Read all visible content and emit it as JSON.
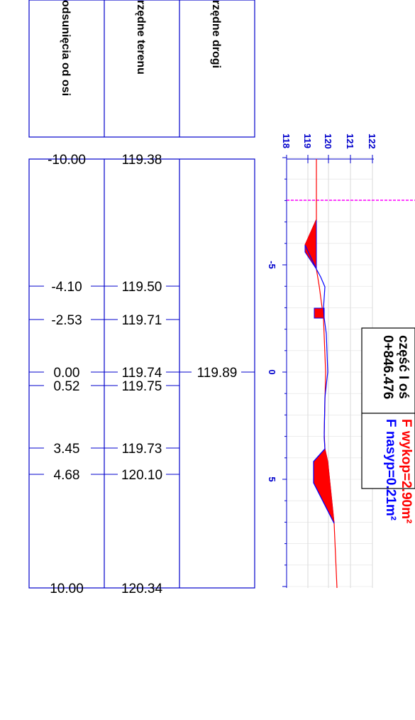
{
  "table": {
    "headers": [
      "odsunięcia od osi",
      "rzędne terenu",
      "rzędne drogi"
    ],
    "rows": [
      {
        "offset": "-10.00",
        "terrain": "119.38",
        "road": ""
      },
      {
        "offset": "-4.10",
        "terrain": "119.50",
        "road": ""
      },
      {
        "offset": "-2.53",
        "terrain": "119.71",
        "road": ""
      },
      {
        "offset": "0.00",
        "terrain": "119.74",
        "road": "119.89"
      },
      {
        "offset": "0.52",
        "terrain": "119.75",
        "road": ""
      },
      {
        "offset": "3.45",
        "terrain": "119.73",
        "road": ""
      },
      {
        "offset": "4.68",
        "terrain": "120.10",
        "road": ""
      },
      {
        "offset": "10.00",
        "terrain": "120.34",
        "road": ""
      }
    ]
  },
  "axis": {
    "elevation_ticks": [
      "118",
      "119",
      "120",
      "121",
      "122"
    ],
    "offset_ticks": [
      "-5",
      "0",
      "5"
    ]
  },
  "info_box": {
    "section": "część I oś",
    "chainage": "0+846.476",
    "f_wykop": "F wykop=2.90m²",
    "f_nasyp": "F nasyp=0.21m²"
  },
  "colors": {
    "frame": "#0000cc",
    "cut_fill": "#ff0000",
    "terrain_line": "#ff0000",
    "road_line": "#0000ff",
    "axis_line": "#ff00ff",
    "grid": "#cccccc"
  }
}
